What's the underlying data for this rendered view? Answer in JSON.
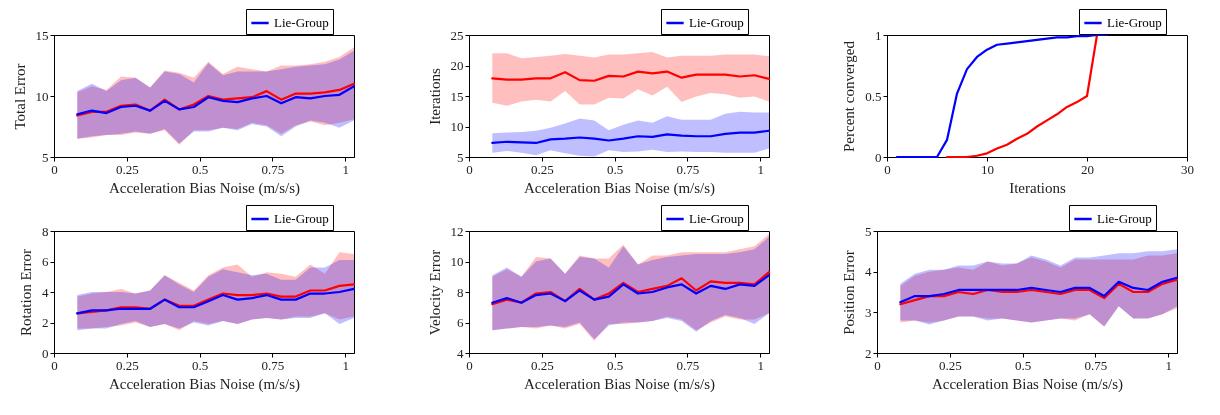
{
  "chart_data": [
    {
      "type": "line",
      "xlabel": "Acceleration Bias Noise (m/s/s)",
      "ylabel": "Total Error",
      "xlim": [
        0,
        1.03
      ],
      "xticks": [
        0,
        0.25,
        0.5,
        0.75,
        1
      ],
      "ylim": [
        5,
        15
      ],
      "yticks": [
        5,
        10,
        15
      ],
      "legend": "top right",
      "x": [
        0.08,
        0.13,
        0.18,
        0.23,
        0.28,
        0.33,
        0.38,
        0.43,
        0.48,
        0.53,
        0.58,
        0.63,
        0.68,
        0.73,
        0.78,
        0.83,
        0.88,
        0.93,
        0.98,
        1.03
      ],
      "series": [
        {
          "color": "#ff0000",
          "values": [
            8.4,
            8.7,
            8.7,
            9.2,
            9.3,
            8.8,
            9.7,
            8.9,
            9.3,
            10.0,
            9.7,
            9.8,
            9.9,
            10.4,
            9.7,
            10.2,
            10.2,
            10.3,
            10.5,
            11.0
          ],
          "upper": [
            10.3,
            10.8,
            10.5,
            11.6,
            11.5,
            10.7,
            12.1,
            11.9,
            11.5,
            12.8,
            11.8,
            12.4,
            12.2,
            12.0,
            12.5,
            12.5,
            12.6,
            12.8,
            13.2,
            14.0
          ],
          "lower": [
            6.5,
            6.6,
            6.8,
            6.8,
            7.0,
            6.9,
            7.2,
            6.0,
            7.2,
            7.2,
            7.4,
            7.3,
            7.8,
            7.6,
            6.9,
            7.6,
            7.9,
            7.6,
            7.8,
            8.1
          ]
        },
        {
          "name": "Lie-Group",
          "color": "#0000ff",
          "values": [
            8.5,
            8.8,
            8.6,
            9.1,
            9.2,
            8.8,
            9.6,
            8.9,
            9.1,
            9.9,
            9.6,
            9.5,
            9.8,
            10.0,
            9.4,
            9.9,
            9.8,
            10.0,
            10.1,
            10.8
          ],
          "upper": [
            10.4,
            11.0,
            10.4,
            11.3,
            11.5,
            10.7,
            12.0,
            11.8,
            11.1,
            12.7,
            11.7,
            12.0,
            12.0,
            12.0,
            12.2,
            12.4,
            12.5,
            12.6,
            13.0,
            13.7
          ],
          "lower": [
            6.5,
            6.7,
            6.8,
            6.9,
            7.1,
            6.9,
            7.3,
            6.1,
            7.1,
            7.1,
            7.4,
            7.2,
            7.7,
            7.5,
            6.7,
            7.5,
            8.0,
            7.8,
            7.4,
            8.0
          ]
        }
      ]
    },
    {
      "type": "line",
      "xlabel": "Acceleration Bias Noise (m/s/s)",
      "ylabel": "Iterations",
      "xlim": [
        0,
        1.03
      ],
      "xticks": [
        0,
        0.25,
        0.5,
        0.75,
        1
      ],
      "ylim": [
        5,
        25
      ],
      "yticks": [
        5,
        10,
        15,
        20,
        25
      ],
      "legend": "top right",
      "x": [
        0.08,
        0.13,
        0.18,
        0.23,
        0.28,
        0.33,
        0.38,
        0.43,
        0.48,
        0.53,
        0.58,
        0.63,
        0.68,
        0.73,
        0.78,
        0.83,
        0.88,
        0.93,
        0.98,
        1.03
      ],
      "series": [
        {
          "color": "#ff0000",
          "values": [
            17.9,
            17.7,
            17.7,
            17.9,
            17.9,
            18.9,
            17.6,
            17.5,
            18.3,
            18.2,
            19.0,
            18.7,
            19.0,
            18.0,
            18.5,
            18.5,
            18.5,
            18.2,
            18.4,
            17.8
          ],
          "upper": [
            22.0,
            22.0,
            21.2,
            21.4,
            21.6,
            21.9,
            21.6,
            21.3,
            21.8,
            21.8,
            22.0,
            22.2,
            21.3,
            21.6,
            21.6,
            21.6,
            21.8,
            21.8,
            21.8,
            21.5
          ],
          "lower": [
            13.9,
            13.4,
            14.1,
            14.4,
            14.1,
            15.8,
            13.6,
            13.6,
            14.7,
            14.6,
            16.1,
            15.1,
            16.5,
            14.0,
            14.9,
            15.5,
            15.3,
            14.7,
            14.9,
            14.1
          ]
        },
        {
          "name": "Lie-Group",
          "color": "#0000ff",
          "values": [
            7.3,
            7.5,
            7.4,
            7.3,
            7.9,
            8.0,
            8.2,
            8.0,
            7.7,
            8.0,
            8.4,
            8.3,
            8.7,
            8.5,
            8.4,
            8.4,
            8.8,
            9.0,
            9.0,
            9.3
          ],
          "upper": [
            8.9,
            9.0,
            9.1,
            9.3,
            9.8,
            10.5,
            11.3,
            11.0,
            9.4,
            10.3,
            11.0,
            10.6,
            11.7,
            11.1,
            11.1,
            11.1,
            12.1,
            12.4,
            12.3,
            12.3
          ],
          "lower": [
            5.7,
            6.0,
            5.7,
            5.3,
            6.1,
            5.6,
            5.2,
            5.1,
            6.1,
            5.8,
            5.9,
            6.2,
            5.8,
            5.9,
            5.8,
            5.8,
            5.7,
            5.7,
            5.7,
            6.4
          ]
        }
      ]
    },
    {
      "type": "line",
      "xlabel": "Iterations",
      "ylabel": "Percent converged",
      "xlim": [
        0,
        30
      ],
      "xticks": [
        0,
        10,
        20,
        30
      ],
      "ylim": [
        0,
        1
      ],
      "yticks": [
        0,
        0.5,
        1
      ],
      "legend": "top right",
      "x": [
        1,
        2,
        3,
        4,
        5,
        6,
        7,
        8,
        9,
        10,
        11,
        12,
        13,
        14,
        15,
        16,
        17,
        18,
        19,
        20,
        21,
        22
      ],
      "series": [
        {
          "color": "#ff0000",
          "values": [
            null,
            null,
            null,
            null,
            null,
            0,
            0,
            0,
            0.01,
            0.03,
            0.07,
            0.1,
            0.15,
            0.19,
            0.25,
            0.3,
            0.35,
            0.41,
            0.45,
            0.5,
            1.0,
            1.0
          ]
        },
        {
          "name": "Lie-Group",
          "color": "#0000ff",
          "values": [
            0,
            0,
            0,
            0,
            0,
            0.14,
            0.52,
            0.72,
            0.82,
            0.88,
            0.92,
            0.93,
            0.94,
            0.95,
            0.96,
            0.97,
            0.98,
            0.98,
            0.99,
            0.99,
            1.0,
            1.0
          ]
        }
      ]
    },
    {
      "type": "line",
      "xlabel": "Acceleration Bias Noise (m/s/s)",
      "ylabel": "Rotation Error",
      "xlim": [
        0,
        1.03
      ],
      "xticks": [
        0,
        0.25,
        0.5,
        0.75,
        1
      ],
      "ylim": [
        0,
        8
      ],
      "yticks": [
        0,
        2,
        4,
        6,
        8
      ],
      "legend": "top right",
      "x": [
        0.08,
        0.13,
        0.18,
        0.23,
        0.28,
        0.33,
        0.38,
        0.43,
        0.48,
        0.53,
        0.58,
        0.63,
        0.68,
        0.73,
        0.78,
        0.83,
        0.88,
        0.93,
        0.98,
        1.03
      ],
      "series": [
        {
          "color": "#ff0000",
          "values": [
            2.6,
            2.7,
            2.8,
            3.0,
            3.0,
            2.9,
            3.5,
            3.1,
            3.1,
            3.5,
            3.9,
            3.8,
            3.8,
            3.9,
            3.7,
            3.7,
            4.1,
            4.1,
            4.4,
            4.5
          ],
          "upper": [
            3.7,
            3.9,
            4.0,
            4.2,
            3.9,
            4.1,
            5.1,
            4.6,
            4.1,
            5.1,
            5.6,
            5.8,
            5.0,
            5.3,
            5.2,
            5.0,
            5.8,
            5.2,
            6.6,
            6.5
          ],
          "lower": [
            1.6,
            1.6,
            1.7,
            1.8,
            2.0,
            1.7,
            1.9,
            1.5,
            2.1,
            1.9,
            2.1,
            1.9,
            2.2,
            2.3,
            2.2,
            2.4,
            2.4,
            2.6,
            2.2,
            2.4
          ]
        },
        {
          "name": "Lie-Group",
          "color": "#0000ff",
          "values": [
            2.6,
            2.8,
            2.8,
            2.9,
            2.9,
            2.9,
            3.5,
            3.0,
            3.0,
            3.4,
            3.8,
            3.5,
            3.6,
            3.8,
            3.5,
            3.5,
            3.9,
            3.9,
            4.0,
            4.2
          ],
          "upper": [
            3.8,
            4.0,
            4.0,
            4.0,
            3.9,
            4.1,
            5.1,
            4.5,
            4.0,
            5.0,
            5.5,
            5.3,
            5.1,
            5.2,
            4.8,
            4.8,
            5.6,
            5.6,
            6.1,
            6.1
          ],
          "lower": [
            1.5,
            1.6,
            1.6,
            1.9,
            2.1,
            1.7,
            1.9,
            1.6,
            2.0,
            1.8,
            2.1,
            1.9,
            2.2,
            2.3,
            2.2,
            2.3,
            2.3,
            2.6,
            1.9,
            2.3
          ]
        }
      ]
    },
    {
      "type": "line",
      "xlabel": "Acceleration Bias Noise (m/s/s)",
      "ylabel": "Velocity Error",
      "xlim": [
        0,
        1.03
      ],
      "xticks": [
        0,
        0.25,
        0.5,
        0.75,
        1
      ],
      "ylim": [
        4,
        12
      ],
      "yticks": [
        4,
        6,
        8,
        10,
        12
      ],
      "legend": "top right",
      "x": [
        0.08,
        0.13,
        0.18,
        0.23,
        0.28,
        0.33,
        0.38,
        0.43,
        0.48,
        0.53,
        0.58,
        0.63,
        0.68,
        0.73,
        0.78,
        0.83,
        0.88,
        0.93,
        0.98,
        1.03
      ],
      "series": [
        {
          "color": "#ff0000",
          "values": [
            7.2,
            7.5,
            7.3,
            7.9,
            8.0,
            7.4,
            8.2,
            7.5,
            7.9,
            8.6,
            8.0,
            8.2,
            8.4,
            8.9,
            8.1,
            8.7,
            8.6,
            8.6,
            8.5,
            9.3
          ],
          "upper": [
            9.0,
            9.5,
            9.0,
            10.3,
            10.2,
            9.2,
            10.4,
            10.2,
            10.2,
            11.1,
            9.8,
            10.4,
            10.4,
            10.6,
            10.6,
            10.6,
            10.6,
            10.8,
            11.0,
            11.8
          ],
          "lower": [
            5.5,
            5.6,
            5.7,
            5.6,
            5.8,
            5.6,
            5.9,
            4.8,
            5.9,
            5.9,
            6.0,
            6.1,
            6.4,
            6.2,
            5.5,
            6.0,
            6.4,
            6.2,
            6.2,
            6.6
          ]
        },
        {
          "name": "Lie-Group",
          "color": "#0000ff",
          "values": [
            7.3,
            7.6,
            7.3,
            7.8,
            7.9,
            7.4,
            8.1,
            7.5,
            7.7,
            8.5,
            7.9,
            8.0,
            8.3,
            8.5,
            7.9,
            8.4,
            8.2,
            8.5,
            8.4,
            9.1
          ],
          "upper": [
            9.1,
            9.6,
            9.0,
            10.0,
            10.2,
            9.2,
            10.3,
            10.2,
            9.6,
            11.0,
            9.8,
            10.1,
            10.3,
            10.4,
            10.5,
            10.5,
            10.5,
            10.6,
            10.8,
            11.6
          ],
          "lower": [
            5.5,
            5.6,
            5.7,
            5.7,
            5.8,
            5.7,
            6.0,
            4.9,
            5.8,
            6.0,
            6.0,
            6.1,
            6.3,
            6.1,
            5.4,
            6.1,
            6.5,
            6.3,
            5.9,
            6.6
          ]
        }
      ]
    },
    {
      "type": "line",
      "xlabel": "Acceleration Bias Noise (m/s/s)",
      "ylabel": "Position Error",
      "xlim": [
        0,
        1.03
      ],
      "xticks": [
        0,
        0.25,
        0.5,
        0.75,
        1
      ],
      "ylim": [
        2,
        5
      ],
      "yticks": [
        2,
        3,
        4,
        5
      ],
      "legend": "top right",
      "x": [
        0.08,
        0.13,
        0.18,
        0.23,
        0.28,
        0.33,
        0.38,
        0.43,
        0.48,
        0.53,
        0.58,
        0.63,
        0.68,
        0.73,
        0.78,
        0.83,
        0.88,
        0.93,
        0.98,
        1.03
      ],
      "series": [
        {
          "color": "#ff0000",
          "values": [
            3.2,
            3.3,
            3.4,
            3.4,
            3.5,
            3.45,
            3.55,
            3.5,
            3.5,
            3.55,
            3.5,
            3.45,
            3.55,
            3.55,
            3.35,
            3.7,
            3.5,
            3.5,
            3.7,
            3.8
          ],
          "upper": [
            3.65,
            3.9,
            4.0,
            4.05,
            4.1,
            4.05,
            4.25,
            4.15,
            4.2,
            4.35,
            4.25,
            4.1,
            4.3,
            4.3,
            4.3,
            4.3,
            4.3,
            4.4,
            4.4,
            4.45
          ],
          "lower": [
            2.75,
            2.8,
            2.75,
            2.8,
            2.9,
            2.9,
            2.85,
            2.85,
            2.8,
            2.75,
            2.8,
            2.85,
            2.8,
            2.95,
            2.65,
            3.15,
            2.85,
            2.85,
            2.95,
            3.1
          ]
        },
        {
          "name": "Lie-Group",
          "color": "#0000ff",
          "values": [
            3.25,
            3.4,
            3.4,
            3.45,
            3.55,
            3.55,
            3.55,
            3.55,
            3.55,
            3.6,
            3.55,
            3.5,
            3.6,
            3.6,
            3.4,
            3.75,
            3.6,
            3.55,
            3.75,
            3.85
          ],
          "upper": [
            3.7,
            3.95,
            4.05,
            4.05,
            4.15,
            4.15,
            4.25,
            4.2,
            4.2,
            4.4,
            4.3,
            4.15,
            4.35,
            4.35,
            4.4,
            4.45,
            4.45,
            4.5,
            4.5,
            4.55
          ],
          "lower": [
            2.8,
            2.8,
            2.7,
            2.8,
            2.9,
            2.9,
            2.8,
            2.85,
            2.8,
            2.75,
            2.8,
            2.85,
            2.85,
            2.95,
            2.65,
            3.15,
            2.85,
            2.85,
            2.95,
            3.15
          ]
        }
      ]
    }
  ]
}
